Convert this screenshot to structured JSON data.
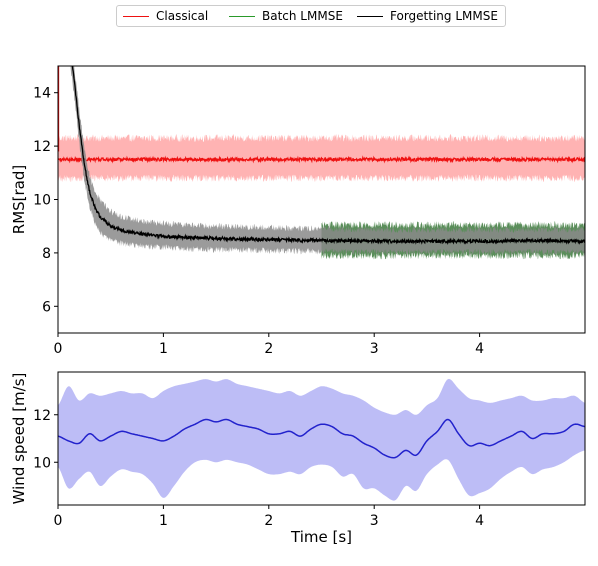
{
  "legend": [
    {
      "label": "Classical",
      "color": "#ee1111"
    },
    {
      "label": "Batch LMMSE",
      "color": "#2a9a2a"
    },
    {
      "label": "Forgetting LMMSE",
      "color": "#000000"
    }
  ],
  "chart_data": [
    {
      "type": "line",
      "ylabel": "RMS[rad]",
      "xlabel": "",
      "xlim": [
        0,
        5
      ],
      "ylim": [
        5,
        15
      ],
      "xticks": [
        "0",
        "1",
        "2",
        "3",
        "4"
      ],
      "yticks": [
        "6",
        "8",
        "10",
        "12",
        "14"
      ],
      "grid": false,
      "series": [
        {
          "name": "Classical",
          "color": "#ee1111",
          "band_color": "#ff9a9a",
          "x": [
            0,
            5
          ],
          "mean": [
            11.5,
            11.5
          ],
          "lower": [
            10.8,
            10.8
          ],
          "upper": [
            12.3,
            12.3
          ]
        },
        {
          "name": "Batch LMMSE",
          "color": "#2a9a2a",
          "band_color": "#3d7a3d",
          "x": [
            2.5,
            5
          ],
          "mean": [
            8.45,
            8.45
          ],
          "lower": [
            7.9,
            7.9
          ],
          "upper": [
            9.05,
            9.05
          ]
        },
        {
          "name": "Forgetting LMMSE",
          "color": "#000000",
          "band_color": "#8a8a8a",
          "x": [
            0.12,
            0.15,
            0.2,
            0.25,
            0.3,
            0.35,
            0.4,
            0.5,
            0.6,
            0.8,
            1.0,
            1.25,
            1.5,
            2.0,
            2.5,
            3.0,
            3.5,
            4.0,
            4.5,
            5.0
          ],
          "mean": [
            15.5,
            14.6,
            12.8,
            11.3,
            10.3,
            9.7,
            9.35,
            9.0,
            8.85,
            8.7,
            8.62,
            8.57,
            8.54,
            8.5,
            8.46,
            8.44,
            8.43,
            8.44,
            8.46,
            8.44
          ],
          "lower": [
            14.9,
            14.0,
            12.2,
            10.7,
            9.7,
            9.1,
            8.75,
            8.5,
            8.35,
            8.25,
            8.2,
            8.15,
            8.12,
            8.08,
            8.05,
            8.03,
            8.03,
            8.03,
            8.04,
            8.03
          ],
          "upper": [
            15.9,
            15.1,
            13.4,
            11.9,
            10.9,
            10.3,
            9.95,
            9.55,
            9.35,
            9.2,
            9.1,
            9.05,
            9.0,
            8.95,
            8.9,
            8.87,
            8.86,
            8.87,
            8.88,
            8.87
          ]
        }
      ]
    },
    {
      "type": "line",
      "ylabel": "Wind speed [m/s]",
      "xlabel": "Time [s]",
      "xlim": [
        0,
        5
      ],
      "ylim": [
        8.2,
        13.8
      ],
      "xticks": [
        "0",
        "1",
        "2",
        "3",
        "4"
      ],
      "yticks": [
        "10",
        "12"
      ],
      "grid": false,
      "series": [
        {
          "name": "",
          "color": "#2222cc",
          "band_color": "#b9b9f6",
          "x": [
            0,
            0.1,
            0.2,
            0.3,
            0.4,
            0.5,
            0.6,
            0.7,
            0.8,
            0.9,
            1.0,
            1.1,
            1.2,
            1.3,
            1.4,
            1.5,
            1.6,
            1.7,
            1.8,
            1.9,
            2.0,
            2.1,
            2.2,
            2.3,
            2.4,
            2.5,
            2.6,
            2.7,
            2.8,
            2.9,
            3.0,
            3.1,
            3.2,
            3.3,
            3.4,
            3.5,
            3.6,
            3.7,
            3.8,
            3.9,
            4.0,
            4.1,
            4.2,
            4.3,
            4.4,
            4.5,
            4.6,
            4.7,
            4.8,
            4.9,
            5.0
          ],
          "mean": [
            11.1,
            10.9,
            10.8,
            11.2,
            10.9,
            11.1,
            11.3,
            11.2,
            11.1,
            11.0,
            10.9,
            11.1,
            11.4,
            11.6,
            11.8,
            11.7,
            11.8,
            11.6,
            11.5,
            11.4,
            11.2,
            11.2,
            11.3,
            11.1,
            11.4,
            11.6,
            11.5,
            11.2,
            11.1,
            10.8,
            10.6,
            10.3,
            10.2,
            10.5,
            10.3,
            10.9,
            11.3,
            11.8,
            11.2,
            10.7,
            10.8,
            10.7,
            10.9,
            11.1,
            11.3,
            11.0,
            11.2,
            11.2,
            11.3,
            11.6,
            11.5
          ],
          "lower": [
            9.8,
            8.9,
            9.3,
            9.6,
            9.0,
            9.4,
            9.7,
            9.6,
            9.5,
            9.1,
            8.5,
            9.0,
            9.6,
            10.0,
            10.1,
            10.0,
            10.1,
            10.0,
            9.9,
            9.7,
            9.5,
            9.5,
            9.6,
            9.5,
            9.8,
            9.9,
            9.8,
            9.4,
            9.5,
            8.9,
            8.9,
            8.6,
            8.4,
            9.0,
            8.8,
            9.5,
            9.9,
            10.1,
            9.3,
            8.6,
            8.7,
            8.9,
            9.3,
            9.6,
            9.8,
            9.5,
            9.7,
            9.8,
            10.0,
            10.3,
            10.5
          ],
          "upper": [
            12.4,
            13.2,
            12.6,
            12.9,
            12.8,
            12.9,
            13.0,
            12.9,
            12.9,
            12.7,
            13.0,
            13.2,
            13.3,
            13.4,
            13.5,
            13.4,
            13.5,
            13.3,
            13.2,
            13.1,
            13.0,
            12.9,
            13.0,
            12.8,
            13.0,
            13.2,
            13.1,
            12.9,
            12.8,
            12.6,
            12.3,
            12.1,
            12.0,
            12.2,
            12.0,
            12.4,
            12.7,
            13.5,
            13.1,
            12.7,
            12.6,
            12.5,
            12.6,
            12.7,
            12.8,
            12.6,
            12.6,
            12.7,
            12.7,
            12.8,
            12.5
          ]
        }
      ]
    }
  ]
}
